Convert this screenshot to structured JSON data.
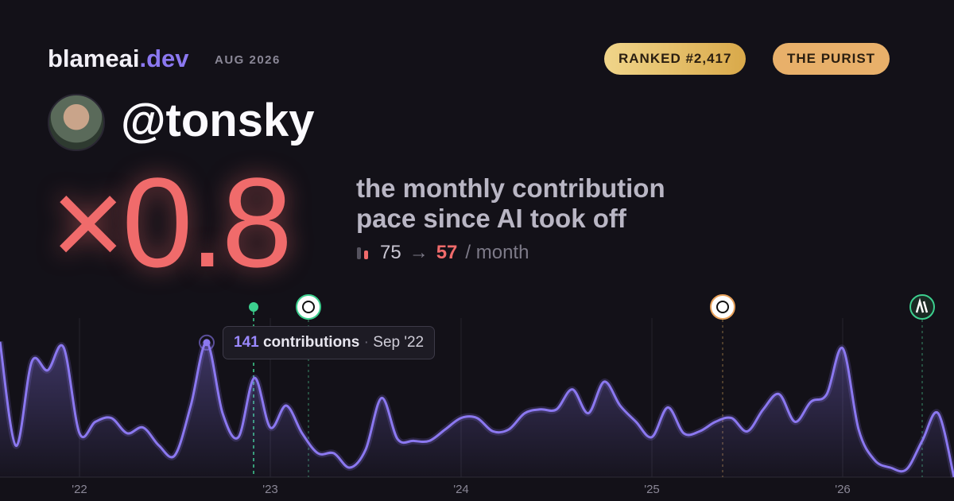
{
  "brand": {
    "name": "blameai",
    "tld": ".dev",
    "period": "AUG 2026"
  },
  "badges": [
    "RANKED #2,417",
    "THE PURIST"
  ],
  "handle": "@tonsky",
  "multiplier": "×0.8",
  "description": [
    "the monthly contribution",
    "pace since AI took off"
  ],
  "pace": {
    "before": 75,
    "arrow": "→",
    "after": 57,
    "unit": "/ month"
  },
  "tooltip": {
    "label": "contributions",
    "separator": "·",
    "date": "Sep '22"
  },
  "chart_data": {
    "type": "line",
    "categories": [
      null,
      null,
      null,
      null,
      null,
      "'22",
      null,
      null,
      null,
      null,
      null,
      null,
      null,
      null,
      null,
      null,
      null,
      "'23",
      null,
      null,
      null,
      null,
      null,
      null,
      null,
      null,
      null,
      null,
      null,
      "'24",
      null,
      null,
      null,
      null,
      null,
      null,
      null,
      null,
      null,
      null,
      null,
      "'25",
      null,
      null,
      null,
      null,
      null,
      null,
      null,
      null,
      null,
      null,
      null,
      "'26",
      null,
      null,
      null,
      null,
      null,
      null,
      null
    ],
    "series": [
      {
        "name": "contributions",
        "color": "#8b78f0",
        "values": [
          142,
          33,
          121,
          112,
          136,
          46,
          58,
          62,
          46,
          52,
          33,
          23,
          75,
          141,
          67,
          42,
          104,
          52,
          75,
          46,
          25,
          25,
          10,
          29,
          83,
          40,
          38,
          38,
          50,
          62,
          62,
          48,
          50,
          67,
          71,
          71,
          92,
          67,
          100,
          75,
          58,
          42,
          73,
          46,
          48,
          58,
          62,
          48,
          71,
          87,
          58,
          79,
          87,
          135,
          50,
          18,
          10,
          8,
          38,
          67,
          0
        ]
      }
    ],
    "ylim": [
      0,
      150
    ],
    "grid": true
  }
}
